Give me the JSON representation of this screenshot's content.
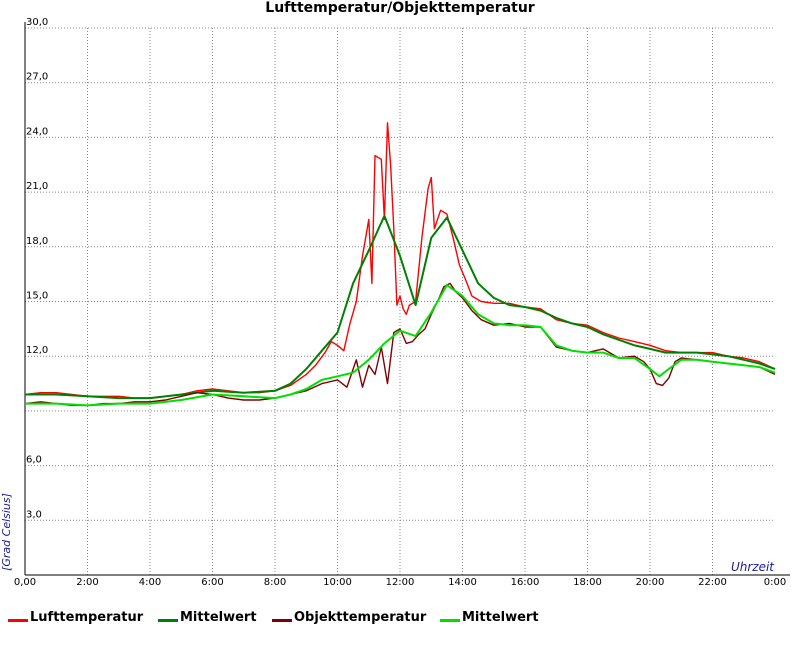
{
  "chart_data": {
    "type": "line",
    "title": "Lufttemperatur/Objekttemperatur",
    "xlabel": "Uhrzeit",
    "ylabel": "[Grad Celsius]",
    "xlim": [
      0,
      24
    ],
    "ylim": [
      0,
      30
    ],
    "grid": true,
    "legend_position": "bottom",
    "x_ticks": [
      "0,00",
      "2:00",
      "4:00",
      "6:00",
      "8:00",
      "10:00",
      "12:00",
      "14:00",
      "16:00",
      "18:00",
      "20:00",
      "22:00",
      "0:00"
    ],
    "y_ticks": [
      "3,0",
      "6,0",
      "12,0",
      "15,0",
      "18,0",
      "21,0",
      "24,0",
      "27,0",
      "30,0"
    ],
    "y_tick_values": [
      3,
      6,
      12,
      15,
      18,
      21,
      24,
      27,
      30
    ],
    "series": [
      {
        "name": "Lufttemperatur",
        "color": "#ff0000",
        "x": [
          0,
          0.5,
          1,
          1.5,
          2,
          2.5,
          3,
          3.5,
          4,
          4.5,
          5,
          5.5,
          6,
          6.5,
          7,
          7.5,
          8,
          8.5,
          9,
          9.3,
          9.6,
          9.8,
          10,
          10.2,
          10.4,
          10.6,
          10.8,
          11,
          11.1,
          11.2,
          11.4,
          11.5,
          11.6,
          11.7,
          11.8,
          11.9,
          12,
          12.1,
          12.2,
          12.3,
          12.5,
          12.7,
          12.9,
          13,
          13.1,
          13.3,
          13.5,
          13.7,
          13.9,
          14.1,
          14.3,
          14.6,
          15,
          15.5,
          16,
          16.5,
          17,
          17.5,
          18,
          18.5,
          19,
          19.5,
          20,
          20.5,
          21,
          21.5,
          22,
          22.5,
          23,
          23.5,
          24
        ],
        "y": [
          9.9,
          10.0,
          10.0,
          9.9,
          9.8,
          9.8,
          9.8,
          9.7,
          9.7,
          9.8,
          9.9,
          10.1,
          10.2,
          10.1,
          10.0,
          10.0,
          10.1,
          10.4,
          11.0,
          11.5,
          12.2,
          12.8,
          12.6,
          12.3,
          13.8,
          15.0,
          17.5,
          19.5,
          16.0,
          23.0,
          22.8,
          19.5,
          24.8,
          22.5,
          19.0,
          14.8,
          15.3,
          14.6,
          14.3,
          14.8,
          15.0,
          18.5,
          21.2,
          21.8,
          19.0,
          20.0,
          19.8,
          18.5,
          17.0,
          16.2,
          15.3,
          15.0,
          14.9,
          14.9,
          14.7,
          14.6,
          14.0,
          13.8,
          13.7,
          13.3,
          13.0,
          12.8,
          12.6,
          12.3,
          12.2,
          12.2,
          12.2,
          12.0,
          11.9,
          11.7,
          11.3
        ]
      },
      {
        "name": "Mittelwert",
        "color": "#008000",
        "x": [
          0,
          1,
          2,
          3,
          4,
          5,
          6,
          7,
          8,
          8.5,
          9,
          9.5,
          10,
          10.5,
          11,
          11.5,
          12,
          12.5,
          13,
          13.5,
          14,
          14.5,
          15,
          15.5,
          16,
          16.5,
          17,
          17.5,
          18,
          18.5,
          19,
          19.5,
          20,
          20.5,
          21,
          21.5,
          22,
          22.5,
          23,
          23.5,
          24
        ],
        "y": [
          9.9,
          9.9,
          9.8,
          9.7,
          9.7,
          9.9,
          10.1,
          10.0,
          10.1,
          10.5,
          11.3,
          12.3,
          13.3,
          16.0,
          17.8,
          19.7,
          17.5,
          14.8,
          18.5,
          19.6,
          17.8,
          16.0,
          15.2,
          14.8,
          14.7,
          14.5,
          14.1,
          13.8,
          13.6,
          13.2,
          12.9,
          12.6,
          12.4,
          12.2,
          12.2,
          12.2,
          12.1,
          12.0,
          11.8,
          11.6,
          11.3
        ]
      },
      {
        "name": "Objekttemperatur",
        "color": "#800000",
        "x": [
          0,
          0.5,
          1,
          1.5,
          2,
          2.5,
          3,
          3.5,
          4,
          4.5,
          5,
          5.5,
          6,
          6.5,
          7,
          7.5,
          8,
          8.5,
          9,
          9.5,
          10,
          10.3,
          10.6,
          10.8,
          11,
          11.2,
          11.4,
          11.6,
          11.8,
          12,
          12.2,
          12.4,
          12.6,
          12.8,
          13,
          13.2,
          13.4,
          13.6,
          13.8,
          14,
          14.3,
          14.6,
          15,
          15.5,
          16,
          16.5,
          17,
          17.5,
          18,
          18.5,
          19,
          19.5,
          19.8,
          20,
          20.2,
          20.4,
          20.6,
          20.8,
          21,
          21.5,
          22,
          22.5,
          23,
          23.5,
          24
        ],
        "y": [
          9.4,
          9.5,
          9.4,
          9.3,
          9.3,
          9.4,
          9.4,
          9.5,
          9.5,
          9.6,
          9.8,
          10.0,
          9.9,
          9.7,
          9.6,
          9.6,
          9.7,
          9.9,
          10.1,
          10.5,
          10.7,
          10.3,
          11.8,
          10.3,
          11.5,
          11.0,
          12.5,
          10.5,
          13.3,
          13.5,
          12.7,
          12.8,
          13.2,
          13.5,
          14.3,
          15.0,
          15.8,
          16.0,
          15.5,
          15.2,
          14.5,
          14.0,
          13.7,
          13.8,
          13.6,
          13.6,
          12.5,
          12.3,
          12.2,
          12.4,
          11.9,
          12.0,
          11.7,
          11.3,
          10.5,
          10.4,
          10.8,
          11.7,
          11.9,
          11.8,
          11.7,
          11.6,
          11.5,
          11.4,
          11.0
        ]
      },
      {
        "name": "Mittelwert",
        "color": "#00e000",
        "x": [
          0,
          1,
          2,
          3,
          4,
          5,
          6,
          7,
          8,
          8.5,
          9,
          9.5,
          10,
          10.5,
          11,
          11.5,
          12,
          12.5,
          13,
          13.5,
          14,
          14.5,
          15,
          15.5,
          16,
          16.5,
          17,
          17.5,
          18,
          18.5,
          19,
          19.5,
          20,
          20.3,
          20.6,
          21,
          21.5,
          22,
          22.5,
          23,
          23.5,
          24
        ],
        "y": [
          9.4,
          9.4,
          9.3,
          9.4,
          9.4,
          9.6,
          9.9,
          9.8,
          9.7,
          9.9,
          10.2,
          10.7,
          10.9,
          11.1,
          11.8,
          12.7,
          13.4,
          13.1,
          14.4,
          15.9,
          15.3,
          14.3,
          13.8,
          13.7,
          13.7,
          13.6,
          12.6,
          12.3,
          12.2,
          12.2,
          11.9,
          11.9,
          11.3,
          10.9,
          11.3,
          11.8,
          11.8,
          11.7,
          11.6,
          11.5,
          11.4,
          11.1
        ]
      }
    ]
  }
}
